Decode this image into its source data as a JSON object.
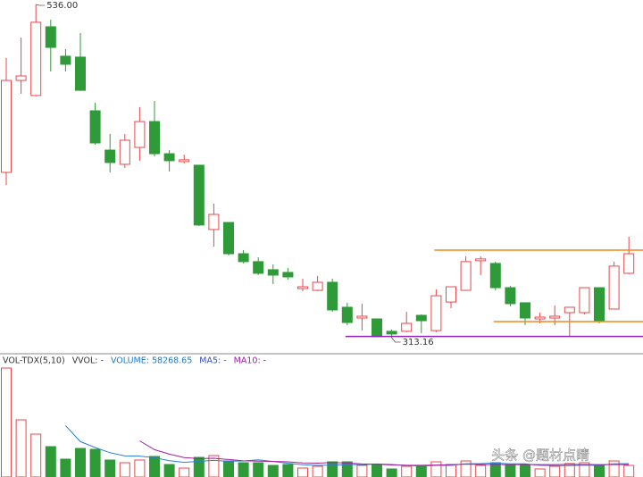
{
  "chart_data": {
    "type": "candlestick",
    "open": [
      423.7,
      485.2,
      475.1,
      521.1,
      501.4,
      500.8,
      464.9,
      438.6,
      429.1,
      440.4,
      457.7,
      436.2,
      430.9,
      428.5,
      385.5,
      390.2,
      369.3,
      364.0,
      358.6,
      356.8,
      346.0,
      344.8,
      350.2,
      333.5,
      326.3,
      325.7,
      317.4,
      317.4,
      328.1,
      317.9,
      337.0,
      344.8,
      364.6,
      362.8,
      346.6,
      336.5,
      325.7,
      326.3,
      329.9,
      329.9,
      346.6,
      332.3,
      356.2
    ],
    "high": [
      500.2,
      513.9,
      536.0,
      525.8,
      506.1,
      516.9,
      470.3,
      449.4,
      449.4,
      467.3,
      471.5,
      438.6,
      435.6,
      428.5,
      402.8,
      390.2,
      371.7,
      366.9,
      362.2,
      359.8,
      352.6,
      354.4,
      352.6,
      336.5,
      335.9,
      325.7,
      318.5,
      330.5,
      328.7,
      345.4,
      347.2,
      367.5,
      367.5,
      364.0,
      347.8,
      336.5,
      329.9,
      334.7,
      333.5,
      346.6,
      346.6,
      364.0,
      380.7
    ],
    "low": [
      415.3,
      476.3,
      474.5,
      491.2,
      491.2,
      478.1,
      442.2,
      423.7,
      426.7,
      431.5,
      434.4,
      424.3,
      429.7,
      387.9,
      374.1,
      368.1,
      362.8,
      355.0,
      349.0,
      352.0,
      344.2,
      344.2,
      330.5,
      321.5,
      317.9,
      313.5,
      313.16,
      316.8,
      316.2,
      316.8,
      332.9,
      344.8,
      355.0,
      344.8,
      334.1,
      321.5,
      322.7,
      321.5,
      313.8,
      328.7,
      322.7,
      332.3,
      355.6
    ],
    "close": [
      485.2,
      488.2,
      524.1,
      507.3,
      496.0,
      478.6,
      443.4,
      430.3,
      445.2,
      457.7,
      436.2,
      431.5,
      432.1,
      388.5,
      395.6,
      369.3,
      364.0,
      356.2,
      355.0,
      353.8,
      347.2,
      350.2,
      331.7,
      323.3,
      327.5,
      313.8,
      315.6,
      322.7,
      324.5,
      341.2,
      347.2,
      364.0,
      365.8,
      346.6,
      335.9,
      326.3,
      326.9,
      327.5,
      333.5,
      346.6,
      323.9,
      361.0,
      369.3
    ],
    "ylim": [
      304.8,
      539.0
    ],
    "colors": {
      "up": "#e8484b",
      "down": "#2f9a38"
    },
    "annotations": [
      {
        "index": 2,
        "value": 536.0,
        "label": "536.00"
      },
      {
        "index": 26,
        "value": 313.16,
        "label": "313.16"
      }
    ],
    "level_lines": [
      {
        "value": 371.7,
        "from": 29,
        "color": "#f08c1e"
      },
      {
        "value": 323.9,
        "from": 33,
        "color": "#f08c1e"
      },
      {
        "value": 314.0,
        "from": 23,
        "color": "#8e1fb0"
      }
    ],
    "volume": {
      "type": "bar",
      "legend": [
        {
          "text": "VOL-TDX(5,10)",
          "color": "#333333"
        },
        {
          "text": "VVOL: -",
          "color": "#333333"
        },
        {
          "text": "VOLUME: 58268.65",
          "color": "#1f78c8"
        },
        {
          "text": "MA5: -",
          "color": "#3a4fb0"
        },
        {
          "text": "MA10: -",
          "color": "#9b1fa0"
        }
      ],
      "values": [
        546800,
        286850,
        215140,
        152390,
        89640,
        143420,
        138940,
        85160,
        71710,
        85160,
        103090,
        62750,
        44820,
        98600,
        107570,
        80680,
        71710,
        71710,
        58270,
        62750,
        44820,
        53780,
        76190,
        76190,
        58270,
        62750,
        40340,
        53780,
        58270,
        76190,
        62750,
        80680,
        58270,
        71710,
        58270,
        62750,
        40340,
        53780,
        67230,
        71710,
        58270,
        80680,
        58268.65
      ],
      "ylim": [
        0,
        600600
      ],
      "series": [
        {
          "color": "#2f7fd0",
          "values": [
            null,
            null,
            null,
            null,
            258160,
            177490,
            147910,
            121910,
            105780,
            104880,
            96810,
            81570,
            73500,
            78880,
            83370,
            78880,
            80680,
            86050,
            77990,
            69020,
            61850,
            58270,
            59160,
            62750,
            61850,
            65440,
            62750,
            58270,
            54680,
            58270,
            58270,
            66330,
            67230,
            69920,
            66330,
            66330,
            58270,
            57370,
            56470,
            59160,
            58270,
            66330,
            67230
          ]
        },
        {
          "color": "#a0239e",
          "values": [
            null,
            null,
            null,
            null,
            null,
            null,
            null,
            null,
            null,
            181520,
            137150,
            114740,
            97710,
            92330,
            94120,
            87850,
            81120,
            79780,
            78440,
            76190,
            70370,
            69470,
            72610,
            70370,
            65440,
            63640,
            60510,
            58710,
            58710,
            60060,
            61850,
            64540,
            62750,
            62300,
            62300,
            62300,
            62300,
            62300,
            63200,
            62750,
            62300,
            62300,
            62300
          ]
        }
      ]
    },
    "watermark": "头条 @题材点睛"
  }
}
